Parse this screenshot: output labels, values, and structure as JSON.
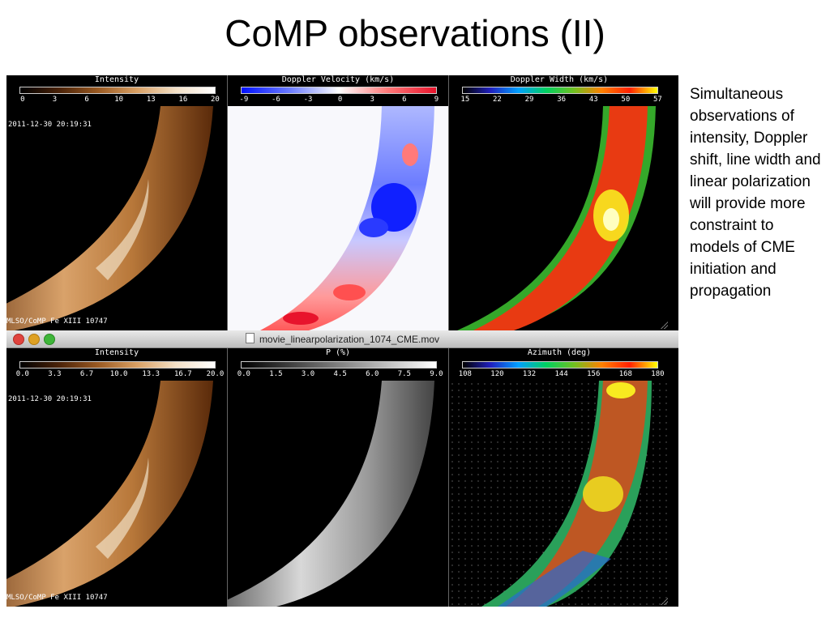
{
  "slide": {
    "title": "CoMP observations (II)",
    "side_text": "Simultaneous observations of intensity, Doppler shift, line width and linear polarization will provide more constraint to models of CME initiation and propagation"
  },
  "top_window": {
    "timestamp": "2011-12-30 20:19:31",
    "instrument": "MLSO/CoMP Fe XIII 10747",
    "panels": [
      {
        "title": "Intensity",
        "ticks": [
          "0",
          "3",
          "6",
          "10",
          "13",
          "16",
          "20"
        ],
        "colormap": "copper"
      },
      {
        "title": "Doppler Velocity (km/s)",
        "ticks": [
          "-9",
          "-6",
          "-3",
          "0",
          "3",
          "6",
          "9"
        ],
        "colormap": "blue-white-red"
      },
      {
        "title": "Doppler Width (km/s)",
        "ticks": [
          "15",
          "22",
          "29",
          "36",
          "43",
          "50",
          "57"
        ],
        "colormap": "rainbow"
      }
    ]
  },
  "bottom_window": {
    "window_title": "movie_linearpolarization_1074_CME.mov",
    "timestamp": "2011-12-30 20:19:31",
    "instrument": "MLSO/CoMP Fe XIII 10747",
    "panels": [
      {
        "title": "Intensity",
        "ticks": [
          "0.0",
          "3.3",
          "6.7",
          "10.0",
          "13.3",
          "16.7",
          "20.0"
        ],
        "colormap": "copper"
      },
      {
        "title": "P (%)",
        "ticks": [
          "0.0",
          "1.5",
          "3.0",
          "4.5",
          "6.0",
          "7.5",
          "9.0"
        ],
        "colormap": "grayscale"
      },
      {
        "title": "Azimuth (deg)",
        "ticks": [
          "108",
          "120",
          "132",
          "144",
          "156",
          "168",
          "180"
        ],
        "colormap": "rainbow"
      }
    ]
  },
  "colors": {
    "copper_bright": "#f3e0c6",
    "doppler_blue": "#1020ff",
    "doppler_red": "#e8142c",
    "width_red": "#e83a12",
    "width_green": "#35a82a",
    "width_yellow": "#f8ea20"
  }
}
